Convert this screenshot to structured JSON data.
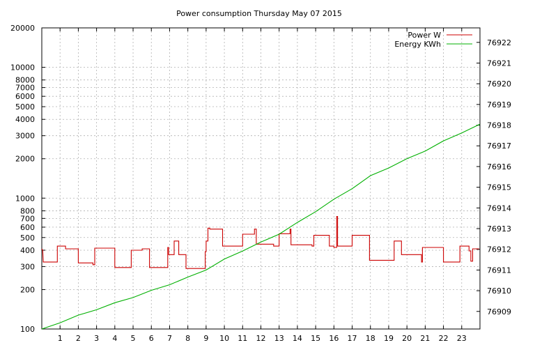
{
  "chart_data": {
    "type": "line",
    "title": "Power consumption Thursday May 07 2015",
    "x": {
      "range": [
        0,
        24
      ],
      "ticks": [
        1,
        2,
        3,
        4,
        5,
        6,
        7,
        8,
        9,
        10,
        11,
        12,
        13,
        14,
        15,
        16,
        17,
        18,
        19,
        20,
        21,
        22,
        23
      ],
      "grid": true
    },
    "y_left": {
      "scale": "log",
      "range": [
        100,
        20000
      ],
      "ticks": [
        100,
        200,
        300,
        400,
        500,
        600,
        700,
        800,
        1000,
        2000,
        3000,
        4000,
        5000,
        6000,
        7000,
        8000,
        10000,
        20000
      ],
      "grid": true
    },
    "y_right": {
      "scale": "linear",
      "range": [
        76908.15,
        76922.7
      ],
      "ticks": [
        76909,
        76910,
        76911,
        76912,
        76913,
        76914,
        76915,
        76916,
        76917,
        76918,
        76919,
        76920,
        76921,
        76922
      ]
    },
    "legend": {
      "placement": "top-right"
    },
    "series": [
      {
        "name": "Power W",
        "axis": "left",
        "color": "#cc0000",
        "shape": "step",
        "points": [
          [
            0.0,
            410
          ],
          [
            0.05,
            400
          ],
          [
            0.08,
            325
          ],
          [
            0.85,
            325
          ],
          [
            0.85,
            430
          ],
          [
            1.3,
            430
          ],
          [
            1.3,
            410
          ],
          [
            2.0,
            410
          ],
          [
            2.0,
            320
          ],
          [
            2.8,
            320
          ],
          [
            2.8,
            310
          ],
          [
            2.9,
            310
          ],
          [
            2.9,
            415
          ],
          [
            4.0,
            415
          ],
          [
            4.0,
            295
          ],
          [
            4.9,
            295
          ],
          [
            4.9,
            400
          ],
          [
            5.5,
            400
          ],
          [
            5.5,
            410
          ],
          [
            5.9,
            410
          ],
          [
            5.9,
            295
          ],
          [
            6.9,
            295
          ],
          [
            6.9,
            420
          ],
          [
            6.95,
            420
          ],
          [
            6.95,
            370
          ],
          [
            7.25,
            370
          ],
          [
            7.25,
            470
          ],
          [
            7.5,
            470
          ],
          [
            7.5,
            370
          ],
          [
            7.9,
            370
          ],
          [
            7.9,
            290
          ],
          [
            8.95,
            290
          ],
          [
            8.95,
            390
          ],
          [
            9.0,
            390
          ],
          [
            9.0,
            470
          ],
          [
            9.1,
            470
          ],
          [
            9.1,
            590
          ],
          [
            9.2,
            590
          ],
          [
            9.2,
            580
          ],
          [
            9.9,
            580
          ],
          [
            9.9,
            430
          ],
          [
            11.0,
            430
          ],
          [
            11.0,
            530
          ],
          [
            11.65,
            530
          ],
          [
            11.65,
            580
          ],
          [
            11.75,
            580
          ],
          [
            11.75,
            445
          ],
          [
            12.7,
            445
          ],
          [
            12.7,
            430
          ],
          [
            13.0,
            430
          ],
          [
            13.0,
            535
          ],
          [
            13.6,
            535
          ],
          [
            13.6,
            580
          ],
          [
            13.65,
            580
          ],
          [
            13.65,
            440
          ],
          [
            14.8,
            440
          ],
          [
            14.8,
            430
          ],
          [
            14.9,
            430
          ],
          [
            14.9,
            520
          ],
          [
            15.75,
            520
          ],
          [
            15.75,
            430
          ],
          [
            16.0,
            430
          ],
          [
            16.0,
            420
          ],
          [
            16.15,
            420
          ],
          [
            16.15,
            725
          ],
          [
            16.2,
            725
          ],
          [
            16.2,
            430
          ],
          [
            17.0,
            430
          ],
          [
            17.0,
            520
          ],
          [
            17.95,
            520
          ],
          [
            17.95,
            335
          ],
          [
            19.3,
            335
          ],
          [
            19.3,
            470
          ],
          [
            19.7,
            470
          ],
          [
            19.7,
            370
          ],
          [
            20.8,
            370
          ],
          [
            20.8,
            325
          ],
          [
            20.85,
            325
          ],
          [
            20.85,
            420
          ],
          [
            22.0,
            420
          ],
          [
            22.0,
            325
          ],
          [
            22.9,
            325
          ],
          [
            22.9,
            430
          ],
          [
            23.4,
            430
          ],
          [
            23.4,
            395
          ],
          [
            23.5,
            395
          ],
          [
            23.5,
            330
          ],
          [
            23.6,
            330
          ],
          [
            23.6,
            410
          ],
          [
            23.95,
            410
          ]
        ]
      },
      {
        "name": "Energy KWh",
        "axis": "right",
        "color": "#00b000",
        "shape": "line",
        "points": [
          [
            0.0,
            76908.15
          ],
          [
            1.0,
            76908.45
          ],
          [
            2.0,
            76908.82
          ],
          [
            3.0,
            76909.08
          ],
          [
            4.0,
            76909.42
          ],
          [
            5.0,
            76909.67
          ],
          [
            6.0,
            76910.02
          ],
          [
            7.0,
            76910.29
          ],
          [
            8.0,
            76910.66
          ],
          [
            9.0,
            76911.0
          ],
          [
            10.0,
            76911.53
          ],
          [
            11.0,
            76911.92
          ],
          [
            12.0,
            76912.35
          ],
          [
            13.0,
            76912.73
          ],
          [
            14.0,
            76913.3
          ],
          [
            15.0,
            76913.82
          ],
          [
            16.0,
            76914.42
          ],
          [
            17.0,
            76914.93
          ],
          [
            18.0,
            76915.56
          ],
          [
            19.0,
            76915.93
          ],
          [
            20.0,
            76916.38
          ],
          [
            21.0,
            76916.75
          ],
          [
            22.0,
            76917.24
          ],
          [
            23.0,
            76917.62
          ],
          [
            24.0,
            76918.05
          ]
        ]
      }
    ]
  }
}
